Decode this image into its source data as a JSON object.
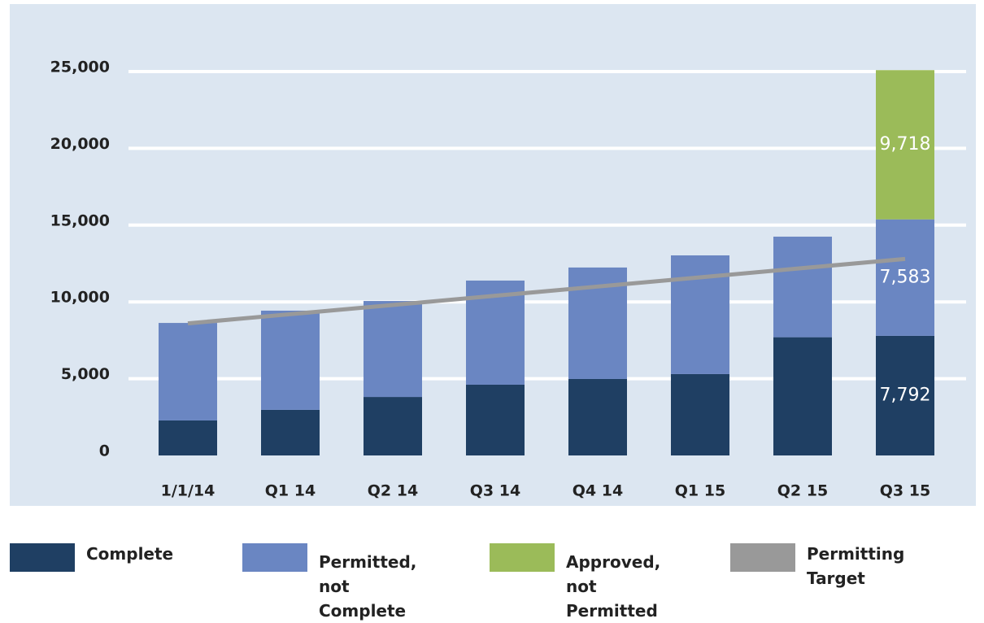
{
  "chart_data": {
    "type": "stacked_bar_line",
    "categories": [
      "1/1/14",
      "Q1 14",
      "Q2 14",
      "Q3 14",
      "Q4 14",
      "Q1 15",
      "Q2 15",
      "Q3 15"
    ],
    "series": [
      {
        "name": "Complete",
        "color": "#1f3f63",
        "values": [
          2280,
          2970,
          3810,
          4610,
          4980,
          5300,
          7700,
          7792
        ],
        "value_labels": [
          null,
          null,
          null,
          null,
          null,
          null,
          null,
          "7,792"
        ]
      },
      {
        "name": "Permitted, not Complete",
        "color": "#6a86c2",
        "values": [
          6350,
          6460,
          6250,
          6780,
          7260,
          7730,
          6550,
          7583
        ],
        "value_labels": [
          null,
          null,
          null,
          null,
          null,
          null,
          null,
          "7,583"
        ]
      },
      {
        "name": "Approved, not Permitted",
        "color": "#9bbb59",
        "values": [
          null,
          null,
          null,
          null,
          null,
          null,
          null,
          9718
        ],
        "value_labels": [
          null,
          null,
          null,
          null,
          null,
          null,
          null,
          "9,718"
        ]
      },
      {
        "name": "Permitting Target",
        "type": "line",
        "color": "#999999",
        "values": [
          8600,
          9200,
          9800,
          10400,
          11000,
          11600,
          12200,
          12800
        ]
      }
    ],
    "ylim": [
      0,
      25000
    ],
    "yticks": [
      0,
      {
        "value": 5000,
        "label": "5,000"
      },
      {
        "value": 10000,
        "label": "10,000"
      },
      {
        "value": 15000,
        "label": "15,000"
      },
      {
        "value": 20000,
        "label": "20,000"
      },
      {
        "value": 25000,
        "label": "25,000"
      }
    ],
    "grid": true,
    "legend": "bottom"
  }
}
